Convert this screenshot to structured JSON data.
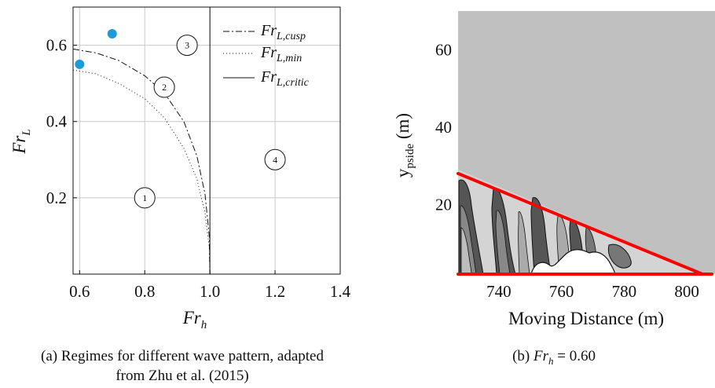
{
  "chart_data": [
    {
      "panel": "a",
      "type": "line",
      "xlabel": "Fr_h",
      "ylabel": "Fr_L",
      "xlim": [
        0.58,
        1.4
      ],
      "ylim": [
        0.0,
        0.7
      ],
      "xticks": [
        "0.6",
        "0.8",
        "1.0",
        "1.2",
        "1.4"
      ],
      "xtick_values": [
        0.6,
        0.8,
        1.0,
        1.2,
        1.4
      ],
      "yticks": [
        "0.2",
        "0.4",
        "0.6"
      ],
      "ytick_values": [
        0.2,
        0.4,
        0.6
      ],
      "grid": true,
      "legend_position": "top-right",
      "series": [
        {
          "name": "Fr_{L,cusp}",
          "style": "dashdot",
          "x": [
            0.58,
            0.65,
            0.72,
            0.8,
            0.86,
            0.92,
            0.96,
            0.985,
            0.998,
            1.0
          ],
          "y": [
            0.59,
            0.58,
            0.56,
            0.52,
            0.475,
            0.4,
            0.31,
            0.21,
            0.1,
            0.0
          ]
        },
        {
          "name": "Fr_{L,min}",
          "style": "dotted",
          "x": [
            0.58,
            0.65,
            0.72,
            0.8,
            0.86,
            0.92,
            0.96,
            0.985,
            0.998,
            1.0
          ],
          "y": [
            0.535,
            0.525,
            0.5,
            0.46,
            0.41,
            0.33,
            0.25,
            0.16,
            0.07,
            0.0
          ]
        },
        {
          "name": "Fr_{L,critic}",
          "style": "solid",
          "x": [
            1.0,
            1.0
          ],
          "y": [
            0.0,
            0.7
          ]
        }
      ],
      "points": [
        {
          "x": 0.7,
          "y": 0.63,
          "color": "#1e9ad6"
        },
        {
          "x": 0.6,
          "y": 0.55,
          "color": "#1e9ad6"
        }
      ],
      "regions": [
        {
          "label": "1",
          "x": 0.8,
          "y": 0.2
        },
        {
          "label": "2",
          "x": 0.86,
          "y": 0.49
        },
        {
          "label": "3",
          "x": 0.93,
          "y": 0.6
        },
        {
          "label": "4",
          "x": 1.2,
          "y": 0.3
        }
      ],
      "caption_lines": [
        "(a) Regimes for different wave pattern, adapted",
        "from Zhu et al. (2015)"
      ]
    },
    {
      "panel": "b",
      "type": "heatmap",
      "xlabel": "Moving Distance (m)",
      "ylabel": "y_pside (m)",
      "xlim": [
        727,
        809
      ],
      "ylim": [
        2,
        70
      ],
      "xticks": [
        "740",
        "760",
        "780",
        "800"
      ],
      "xtick_values": [
        740,
        760,
        780,
        800
      ],
      "yticks": [
        "20",
        "40",
        "60"
      ],
      "ytick_values": [
        20,
        40,
        60
      ],
      "background_color": "#c0c0c0",
      "line_color": "#ff0000",
      "wedge_lines": [
        {
          "x": [
            727,
            805
          ],
          "y": [
            28,
            2
          ]
        },
        {
          "x": [
            727,
            808
          ],
          "y": [
            2,
            2
          ]
        }
      ],
      "caption_prefix": "(b)",
      "caption_var": "Fr_h",
      "caption_value": "0.60"
    }
  ]
}
